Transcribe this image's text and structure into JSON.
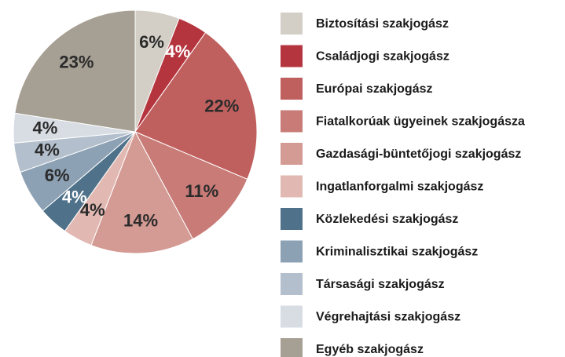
{
  "chart_data": {
    "type": "pie",
    "categories": [
      "Biztosítási szakjogász",
      "Családjogi szakjogász",
      "Európai szakjogász",
      "Fiatalkorúak ügyeinek szakjogásza",
      "Gazdasági-büntetőjogi szakjogász",
      "Ingatlanforgalmi szakjogász",
      "Közlekedési szakjogász",
      "Kriminalisztikai szakjogász",
      "Társasági szakjogász",
      "Végrehajtási szakjogász",
      "Egyéb szakjogász"
    ],
    "values": [
      6,
      4,
      22,
      11,
      14,
      4,
      4,
      6,
      4,
      4,
      23
    ],
    "value_labels": [
      "6%",
      "4%",
      "22%",
      "11%",
      "14%",
      "4%",
      "4%",
      "6%",
      "4%",
      "4%",
      "23%"
    ],
    "colors": [
      "#d3cfc6",
      "#b5353f",
      "#c0605e",
      "#c87b77",
      "#d49a94",
      "#e2b9b2",
      "#4f7189",
      "#8da1b4",
      "#b3bfcc",
      "#d8dde3",
      "#a69f93"
    ],
    "legend": "right"
  }
}
